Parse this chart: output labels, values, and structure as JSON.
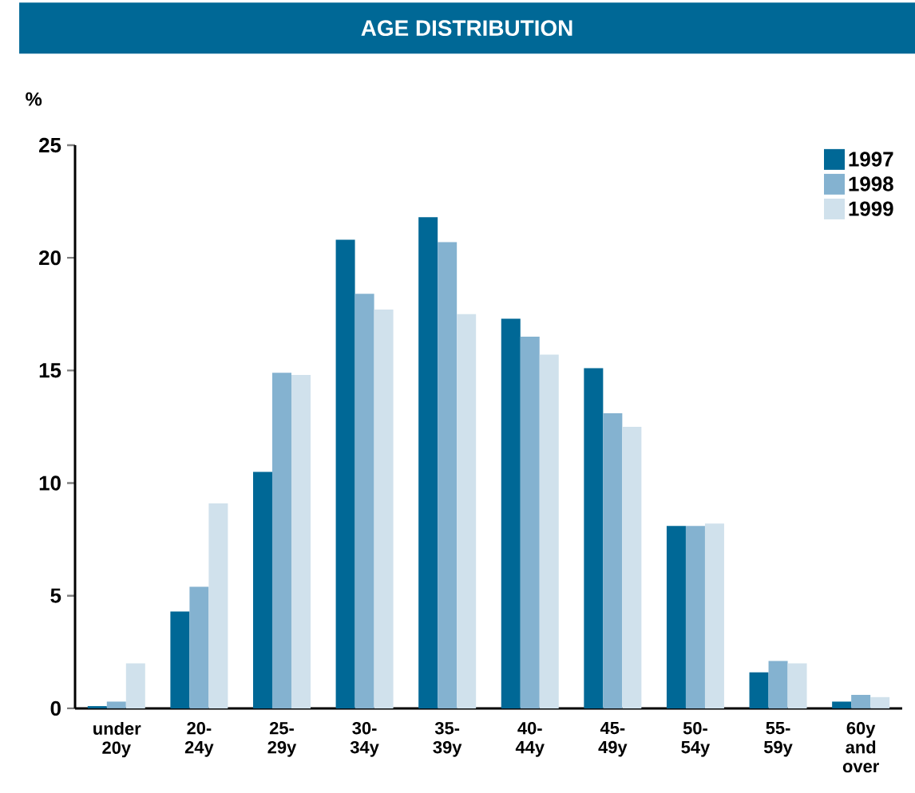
{
  "chart_data": {
    "type": "bar",
    "title": "AGE DISTRIBUTION",
    "ylabel": "%",
    "categories": [
      "under 20y",
      "20-24y",
      "25-29y",
      "30-34y",
      "35-39y",
      "40-44y",
      "45-49y",
      "50-54y",
      "55-59y",
      "60y and over"
    ],
    "series": [
      {
        "name": "1997",
        "color": "#006896",
        "values": [
          0.1,
          4.3,
          10.5,
          20.8,
          21.8,
          17.3,
          15.1,
          8.1,
          1.6,
          0.3
        ]
      },
      {
        "name": "1998",
        "color": "#84b2d0",
        "values": [
          0.3,
          5.4,
          14.9,
          18.4,
          20.7,
          16.5,
          13.1,
          8.1,
          2.1,
          0.6
        ]
      },
      {
        "name": "1999",
        "color": "#d0e1ec",
        "values": [
          2.0,
          9.1,
          14.8,
          17.7,
          17.5,
          15.7,
          12.5,
          8.2,
          2.0,
          0.5
        ]
      }
    ],
    "ylim": [
      0,
      25
    ],
    "yticks": [
      0,
      5,
      10,
      15,
      20,
      25
    ],
    "legend": "top right"
  }
}
